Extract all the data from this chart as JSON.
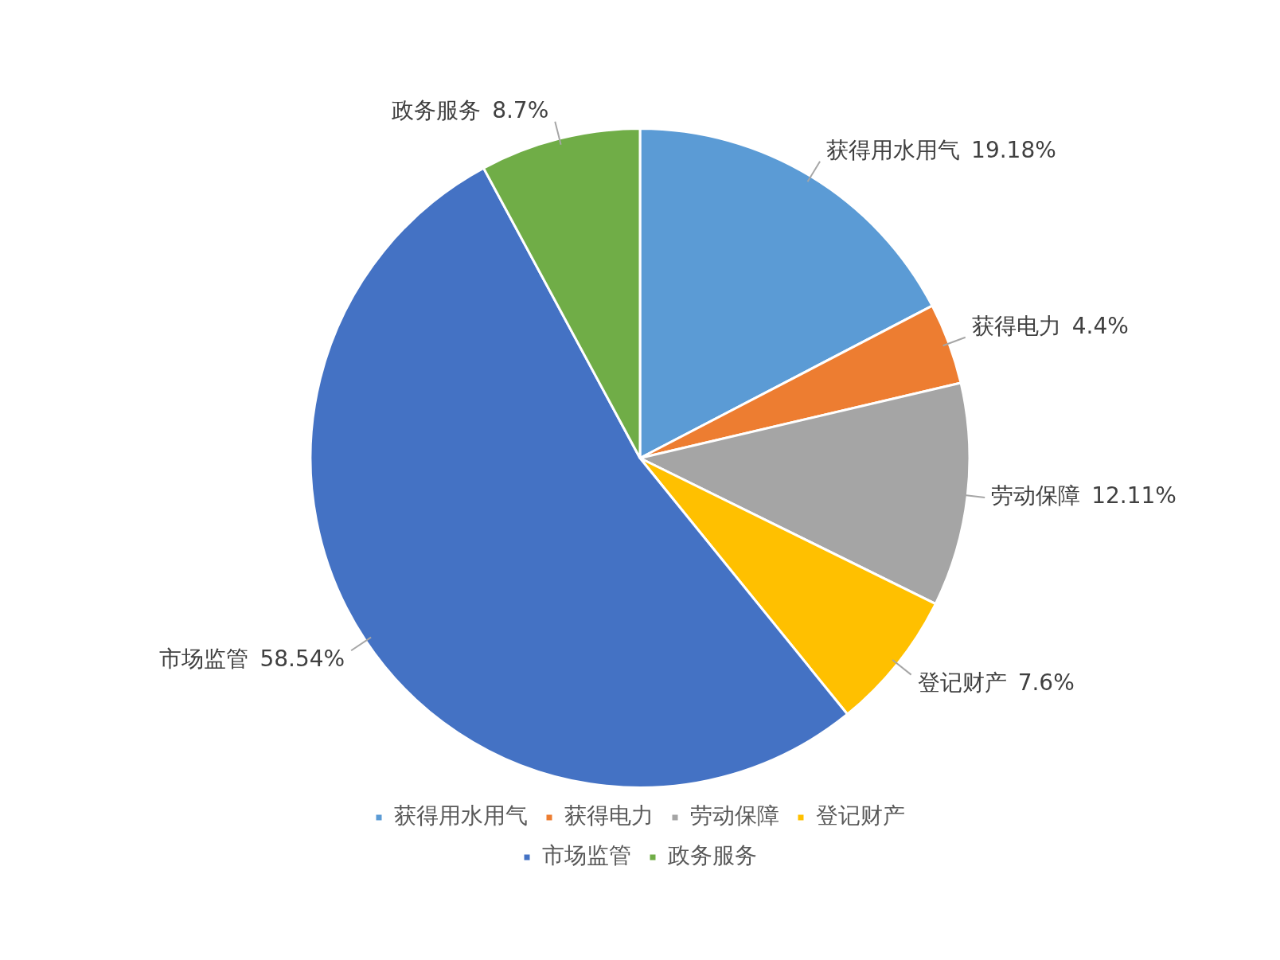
{
  "chart_data": {
    "type": "pie",
    "categories": [
      "获得用水用气",
      "获得电力",
      "劳动保障",
      "登记财产",
      "市场监管",
      "政务服务"
    ],
    "values": [
      19.18,
      4.4,
      12.11,
      7.6,
      58.54,
      8.7
    ],
    "value_labels": [
      "19.18%",
      "4.4%",
      "12.11%",
      "7.6%",
      "58.54%",
      "8.7%"
    ],
    "colors": [
      "#5b9bd5",
      "#ed7d31",
      "#a5a5a5",
      "#ffc000",
      "#4472c4",
      "#70ad47"
    ],
    "legend": "bottom"
  }
}
